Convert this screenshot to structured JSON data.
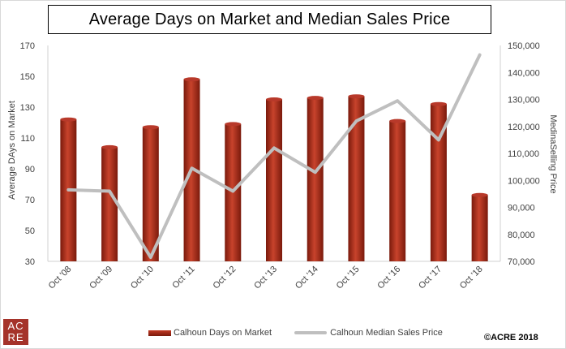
{
  "title": "Average  Days on Market and Median Sales Price",
  "logo": {
    "line1": "AC",
    "line2": "RE"
  },
  "copyright": "©ACRE 2018",
  "colors": {
    "bar": "#a52a1a",
    "line": "#bfbfbf"
  },
  "legend": {
    "series1": "Calhoun Days on Market",
    "series2": "Calhoun Median Sales Price"
  },
  "chart_data": {
    "type": "bar",
    "categories": [
      "Oct '08",
      "Oct '09",
      "Oct '10",
      "Oct '11",
      "Oct '12",
      "Oct '13",
      "Oct '14",
      "Oct '15",
      "Oct '16",
      "Oct '17",
      "Oct '18"
    ],
    "series": [
      {
        "name": "Calhoun Days on Market",
        "type": "bar",
        "axis": "left",
        "values": [
          122,
          104,
          117,
          148,
          119,
          135,
          136,
          137,
          121,
          132,
          73
        ]
      },
      {
        "name": "Calhoun Median Sales Price",
        "type": "line",
        "axis": "right",
        "values": [
          96500,
          96000,
          71500,
          104500,
          96000,
          112000,
          103000,
          122000,
          129500,
          115000,
          146500
        ]
      }
    ],
    "ylabel": "Average DAys on Market",
    "y2label": "MedinaSelling Price",
    "ylim": [
      30,
      170
    ],
    "y2lim": [
      70000,
      150000
    ],
    "yticks": [
      "30",
      "50",
      "70",
      "90",
      "110",
      "130",
      "150",
      "170"
    ],
    "y2ticks": [
      "70,000",
      "80,000",
      "90,000",
      "100,000",
      "110,000",
      "120,000",
      "130,000",
      "140,000",
      "150,000"
    ],
    "legend_position": "bottom"
  }
}
